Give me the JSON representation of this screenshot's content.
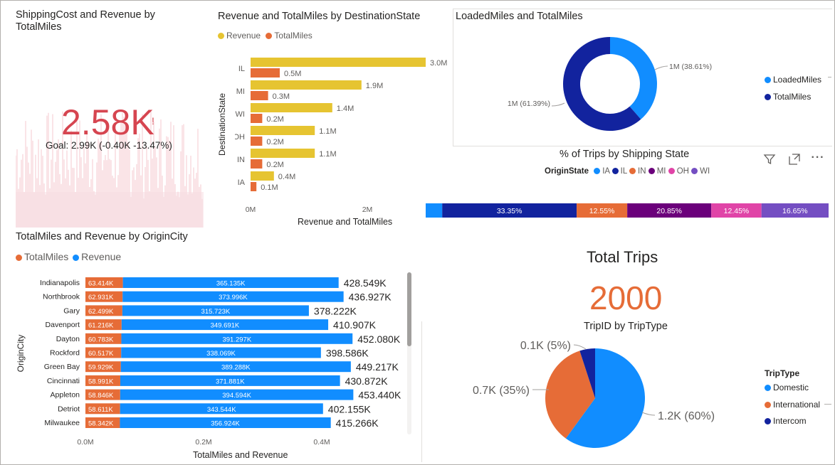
{
  "kpi": {
    "title": "ShippingCost and Revenue by TotalMiles",
    "value": "2.58K",
    "alert": "!",
    "goal": "Goal: 2.99K (-0.40K -13.47%)",
    "accent": "#d13438"
  },
  "destination_chart": {
    "title": "Revenue and TotalMiles by DestinationState",
    "legend": [
      "Revenue",
      "TotalMiles"
    ],
    "ylabel": "DestinationState",
    "xlabel": "Revenue and TotalMiles",
    "xticks": [
      "0M",
      "2M"
    ],
    "colors": {
      "revenue": "#e6c431",
      "miles": "#e66c37"
    }
  },
  "loaded_chart": {
    "title": "LoadedMiles and TotalMiles",
    "legend": [
      "LoadedMiles",
      "TotalMiles"
    ],
    "labels": [
      "1M (38.61%)",
      "1M (61.39%)"
    ],
    "colors": {
      "loaded": "#118dff",
      "total": "#12239e"
    }
  },
  "shipping_state": {
    "title": "% of Trips by Shipping State",
    "legend_title": "OriginState",
    "legend": [
      "IA",
      "IL",
      "IN",
      "MI",
      "OH",
      "WI"
    ],
    "colors": [
      "#118dff",
      "#12239e",
      "#e66c37",
      "#6b007b",
      "#e044a7",
      "#744ec2"
    ],
    "labels": [
      "",
      "33.35%",
      "12.55%",
      "20.85%",
      "12.45%",
      "16.65%"
    ]
  },
  "origin_chart": {
    "title": "TotalMiles and Revenue by OriginCity",
    "legend": [
      "TotalMiles",
      "Revenue"
    ],
    "ylabel": "OriginCity",
    "xlabel": "TotalMiles and Revenue",
    "xticks": [
      "0.0M",
      "0.2M",
      "0.4M"
    ],
    "colors": {
      "miles": "#e66c37",
      "revenue": "#118dff"
    }
  },
  "total_trips": {
    "title": "Total Trips",
    "value": "2000",
    "color": "#e66c37"
  },
  "trip_type": {
    "title": "TripID by TripType",
    "legend_title": "TripType",
    "legend": [
      "Domestic",
      "International",
      "Intercom"
    ],
    "labels": [
      "1.2K (60%)",
      "0.7K (35%)",
      "0.1K (5%)"
    ],
    "colors": [
      "#118dff",
      "#e66c37",
      "#12239e"
    ]
  },
  "visual_header": {
    "filter_icon": "filter-icon",
    "focus_icon": "focus-mode-icon",
    "more_icon": "more-options-icon",
    "more_label": "···"
  },
  "chart_data": [
    {
      "type": "bar",
      "title": "Revenue and TotalMiles by DestinationState",
      "xlabel": "Revenue and TotalMiles",
      "ylabel": "DestinationState",
      "categories": [
        "IL",
        "MI",
        "WI",
        "OH",
        "IN",
        "IA"
      ],
      "series": [
        {
          "name": "Revenue",
          "values": [
            3.0,
            1.9,
            1.4,
            1.1,
            1.1,
            0.4
          ],
          "labels": [
            "3.0M",
            "1.9M",
            "1.4M",
            "1.1M",
            "1.1M",
            "0.4M"
          ]
        },
        {
          "name": "TotalMiles",
          "values": [
            0.5,
            0.3,
            0.2,
            0.2,
            0.2,
            0.1
          ],
          "labels": [
            "0.5M",
            "0.3M",
            "0.2M",
            "0.2M",
            "0.2M",
            "0.1M"
          ]
        }
      ],
      "xlim": [
        0,
        3.0
      ],
      "legend": "top-left"
    },
    {
      "type": "pie",
      "title": "LoadedMiles and TotalMiles",
      "categories": [
        "LoadedMiles",
        "TotalMiles"
      ],
      "values": [
        38.61,
        61.39
      ],
      "labels": [
        "1M (38.61%)",
        "1M (61.39%)"
      ],
      "legend": "right"
    },
    {
      "type": "bar",
      "title": "% of Trips by Shipping State",
      "categories": [
        "IA",
        "IL",
        "IN",
        "MI",
        "OH",
        "WI"
      ],
      "values": [
        4.1,
        33.35,
        12.55,
        20.85,
        12.45,
        16.65
      ],
      "legend": "top"
    },
    {
      "type": "bar",
      "title": "TotalMiles and Revenue by OriginCity",
      "xlabel": "TotalMiles and Revenue",
      "ylabel": "OriginCity",
      "categories": [
        "Indianapolis",
        "Northbrook",
        "Gary",
        "Davenport",
        "Dayton",
        "Rockford",
        "Green Bay",
        "Cincinnati",
        "Appleton",
        "Detriot",
        "Milwaukee"
      ],
      "series": [
        {
          "name": "TotalMiles",
          "values": [
            63.414,
            62.931,
            62.499,
            61.216,
            60.783,
            60.517,
            59.929,
            58.991,
            58.846,
            58.611,
            58.342
          ],
          "labels": [
            "63.414K",
            "62.931K",
            "62.499K",
            "61.216K",
            "60.783K",
            "60.517K",
            "59.929K",
            "58.991K",
            "58.846K",
            "58.611K",
            "58.342K"
          ]
        },
        {
          "name": "Revenue",
          "values": [
            365.135,
            373.996,
            315.723,
            349.691,
            391.297,
            338.069,
            389.288,
            371.881,
            394.594,
            343.544,
            356.924
          ],
          "labels": [
            "365.135K",
            "373.996K",
            "315.723K",
            "349.691K",
            "391.297K",
            "338.069K",
            "389.288K",
            "371.881K",
            "394.594K",
            "343.544K",
            "356.924K"
          ]
        }
      ],
      "totals": [
        "428.549K",
        "436.927K",
        "378.222K",
        "410.907K",
        "452.080K",
        "398.586K",
        "449.217K",
        "430.872K",
        "453.440K",
        "402.155K",
        "415.266K"
      ],
      "xlim": [
        0,
        0.5
      ],
      "legend": "top-left"
    },
    {
      "type": "pie",
      "title": "TripID by TripType",
      "categories": [
        "Domestic",
        "International",
        "Intercom"
      ],
      "values": [
        60,
        35,
        5
      ],
      "labels": [
        "1.2K (60%)",
        "0.7K (35%)",
        "0.1K (5%)"
      ],
      "legend": "right"
    }
  ]
}
